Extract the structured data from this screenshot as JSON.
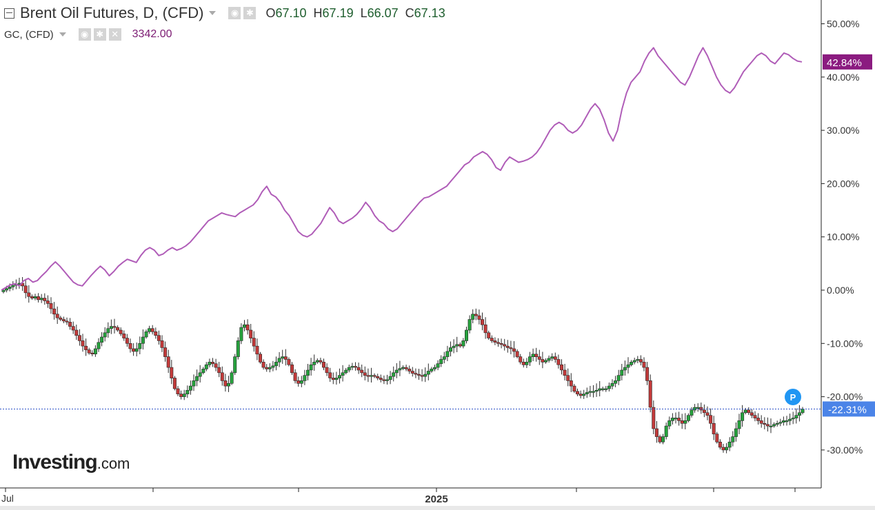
{
  "header": {
    "title": "Brent Oil Futures, D, (CFD)",
    "open_key": "O",
    "open_val": "67.10",
    "high_key": "H",
    "high_val": "67.19",
    "low_key": "L",
    "low_val": "66.07",
    "close_key": "C",
    "close_val": "67.13",
    "gc_title": "GC, (CFD)",
    "gc_value": "3342.00",
    "icons": [
      "settings-icon",
      "gear-icon",
      "close-icon"
    ]
  },
  "logo": {
    "brand": "Investing",
    "suffix": ".com"
  },
  "colors": {
    "gold_line": "#b05db8",
    "gold_badge": "#8b1b80",
    "up": "#26a23d",
    "down": "#c23a3a",
    "price_line": "#2b4fc7",
    "price_badge": "#4b84e8",
    "marker": "#2196f3",
    "grid": "#eeeeee",
    "axis": "#222222"
  },
  "chart_data": {
    "type": "line",
    "xlabel": "",
    "ylabel": "",
    "x_ticks": [
      "Jul",
      "2025"
    ],
    "ylim": [
      -35,
      55
    ],
    "y_ticks": [
      "50.00%",
      "40.00%",
      "30.00%",
      "20.00%",
      "10.00%",
      "0.00%",
      "-10.00%",
      "-20.00%",
      "-30.00%"
    ],
    "grid": false,
    "last_value_labels": {
      "gold": "42.84%",
      "brent": "-22.31%"
    },
    "marker_label": "P",
    "series": [
      {
        "name": "GC, (CFD)",
        "style": "line",
        "values": [
          0,
          0.5,
          1,
          1.2,
          0.8,
          1.8,
          2.2,
          1.5,
          1.8,
          2.7,
          3.5,
          4.5,
          5.3,
          4.5,
          3.5,
          2.5,
          1.5,
          1,
          0.8,
          1.8,
          2.8,
          3.7,
          4.5,
          3.8,
          2.7,
          3.5,
          4.5,
          5.2,
          5.8,
          5.5,
          5.2,
          6.5,
          7.5,
          8,
          7.5,
          6.5,
          6.8,
          7.5,
          8,
          7.5,
          7.8,
          8.3,
          9,
          10,
          11,
          12,
          13,
          13.5,
          14,
          14.5,
          14.2,
          14,
          13.8,
          14.5,
          15,
          15.5,
          16,
          17,
          18.5,
          19.5,
          18,
          17.5,
          16.5,
          15,
          14,
          12.5,
          11,
          10.3,
          10,
          10.5,
          11.5,
          12.5,
          14,
          15.5,
          14.5,
          13,
          12.5,
          13,
          13.5,
          14.2,
          15.2,
          16.5,
          15.5,
          14,
          13,
          12.5,
          11.5,
          11,
          11.5,
          12.5,
          13.5,
          14.5,
          15.5,
          16.5,
          17.3,
          17.5,
          18,
          18.5,
          19,
          19.5,
          20.5,
          21.5,
          22.5,
          23.5,
          24,
          25,
          25.5,
          26,
          25.5,
          24.5,
          23,
          22.5,
          24,
          25,
          24.5,
          24,
          24.2,
          24.5,
          25,
          25.8,
          27,
          28.5,
          30,
          31,
          31.5,
          31,
          30,
          29.5,
          30,
          31,
          32.5,
          34,
          35,
          34,
          32,
          29.5,
          28,
          30,
          34,
          37,
          39,
          40,
          41,
          43,
          44.5,
          45.5,
          44,
          43,
          42,
          41,
          40,
          39,
          38.5,
          40,
          42,
          44,
          45.5,
          44,
          42,
          40,
          38.5,
          37.5,
          37,
          38,
          39.5,
          41,
          42,
          43,
          44,
          44.5,
          44,
          43,
          42.5,
          43.5,
          44.5,
          44.2,
          43.5,
          43,
          42.84
        ]
      },
      {
        "name": "Brent Oil Futures, D, (CFD)",
        "style": "candlestick",
        "values": [
          0,
          0.3,
          0.6,
          0.9,
          1.1,
          1.3,
          0.8,
          -0.5,
          -1.2,
          -1.5,
          -1.2,
          -1.8,
          -1.5,
          -2,
          -2.5,
          -3.5,
          -4.5,
          -5.2,
          -5.5,
          -5.8,
          -6,
          -6.8,
          -7.5,
          -8.5,
          -9.5,
          -10.5,
          -11.2,
          -11.8,
          -12,
          -11,
          -9.8,
          -8.8,
          -8,
          -7.2,
          -6.8,
          -7,
          -7.5,
          -8.2,
          -9,
          -10,
          -11,
          -11.5,
          -11,
          -10,
          -8.8,
          -7.8,
          -7.2,
          -7.8,
          -8.5,
          -9.5,
          -10.8,
          -12.5,
          -14.5,
          -16.5,
          -18.5,
          -19.5,
          -20,
          -19.5,
          -18.8,
          -18,
          -17,
          -16.2,
          -15.5,
          -14.8,
          -14,
          -13.5,
          -13.8,
          -14.5,
          -15.5,
          -17,
          -18,
          -17.5,
          -15.5,
          -12.5,
          -9.5,
          -7,
          -6.5,
          -7.5,
          -9,
          -10.5,
          -12,
          -13.5,
          -14.5,
          -14.8,
          -14.5,
          -14.2,
          -13.5,
          -12.8,
          -12.5,
          -13,
          -14,
          -15.5,
          -17,
          -17.5,
          -17,
          -16,
          -15,
          -14,
          -13.5,
          -13.2,
          -13.5,
          -14.5,
          -15.5,
          -16.5,
          -16.8,
          -16.5,
          -16,
          -15.5,
          -15,
          -14.5,
          -14.3,
          -14.5,
          -15,
          -15.5,
          -16,
          -16.2,
          -16,
          -16.2,
          -16.5,
          -16.8,
          -17,
          -16.8,
          -16.2,
          -15.5,
          -15,
          -14.7,
          -14.5,
          -14.8,
          -15.2,
          -15.6,
          -15.8,
          -16,
          -16.2,
          -15.8,
          -15.2,
          -14.8,
          -14.5,
          -13.8,
          -13,
          -12.5,
          -11.5,
          -10.8,
          -10.5,
          -10.2,
          -10.5,
          -9.5,
          -7.5,
          -5.5,
          -4.5,
          -4.8,
          -5.5,
          -6.5,
          -8,
          -9,
          -9.5,
          -9.8,
          -10,
          -10.2,
          -10.5,
          -10.8,
          -11,
          -11.5,
          -12.5,
          -13.5,
          -14,
          -13.5,
          -12.5,
          -12,
          -12.5,
          -13,
          -13.5,
          -13.2,
          -12.8,
          -12.5,
          -13,
          -14,
          -15,
          -16,
          -17,
          -18,
          -19,
          -19.5,
          -19.8,
          -19.5,
          -19.2,
          -19,
          -19,
          -18.8,
          -18.5,
          -18.5,
          -18.5,
          -18,
          -17.5,
          -17,
          -16,
          -15,
          -14.5,
          -14,
          -13.5,
          -13.2,
          -13,
          -13.5,
          -14.5,
          -17,
          -22,
          -26,
          -27.5,
          -28.5,
          -27.5,
          -25.5,
          -24.5,
          -24,
          -24,
          -24.5,
          -25,
          -24.5,
          -23.5,
          -22.5,
          -22,
          -22,
          -22.5,
          -23,
          -23.5,
          -25,
          -27,
          -28.5,
          -29.5,
          -30,
          -29.5,
          -28.5,
          -27.5,
          -26,
          -24.5,
          -23,
          -22.5,
          -23,
          -23.5,
          -24,
          -24.5,
          -25,
          -25.2,
          -25.5,
          -25.5,
          -25.2,
          -25,
          -24.8,
          -24.5,
          -24.5,
          -24.2,
          -24,
          -23.5,
          -23,
          -22.31
        ]
      }
    ]
  }
}
